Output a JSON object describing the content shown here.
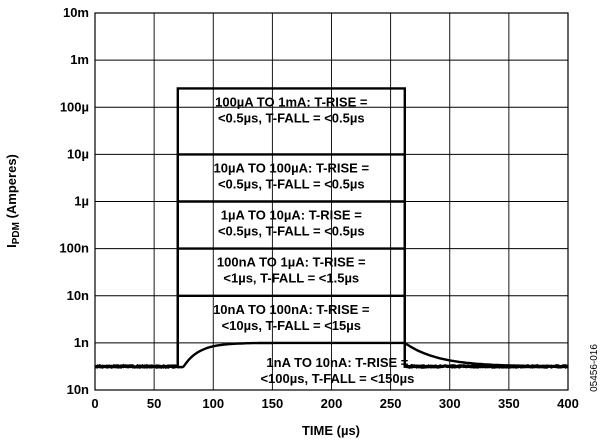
{
  "chart_data": {
    "type": "line",
    "title": "",
    "xlabel": "TIME (µs)",
    "ylabel": {
      "base": "I",
      "subscript": "PDM",
      "rest": " (Amperes)"
    },
    "xlim": [
      0,
      400
    ],
    "x_ticks": [
      0,
      50,
      100,
      150,
      200,
      250,
      300,
      350,
      400
    ],
    "y_ticks": [
      "10n",
      "1n",
      "10n",
      "100n",
      "1µ",
      "10µ",
      "100µ",
      "1m",
      "10m"
    ],
    "grid": true,
    "figure_id": "05456-016",
    "series": [
      {
        "low": 0,
        "high": 6.4,
        "rise_x": 70,
        "fall_x": 262,
        "annotation": [
          "100µA TO 1mA: T-RISE =",
          "<0.5µs, T-FALL = <0.5µs"
        ]
      },
      {
        "low": 0,
        "high": 5,
        "rise_x": 70,
        "fall_x": 262,
        "annotation": [
          "10µA TO 100µA: T-RISE =",
          "<0.5µs, T-FALL = <0.5µs"
        ]
      },
      {
        "low": 0,
        "high": 4,
        "rise_x": 70,
        "fall_x": 262,
        "annotation": [
          "1µA TO 10µA: T-RISE =",
          "<0.5µs, T-FALL = <0.5µs"
        ]
      },
      {
        "low": 0,
        "high": 3,
        "rise_x": 70,
        "fall_x": 262,
        "annotation": [
          "100nA TO 1µA: T-RISE =",
          "<1µs, T-FALL = <1.5µs"
        ]
      },
      {
        "low": 0,
        "high": 2,
        "rise_x": 70,
        "fall_x": 262,
        "annotation": [
          "10nA TO 100nA: T-RISE =",
          "<10µs, T-FALL = <15µs"
        ]
      },
      {
        "low": 0,
        "high": 1,
        "rise_x": 75,
        "fall_x": 262,
        "annotation": [
          "1nA TO 10nA: T-RISE =",
          "<100µs, T-FALL = <150µs"
        ]
      }
    ]
  }
}
